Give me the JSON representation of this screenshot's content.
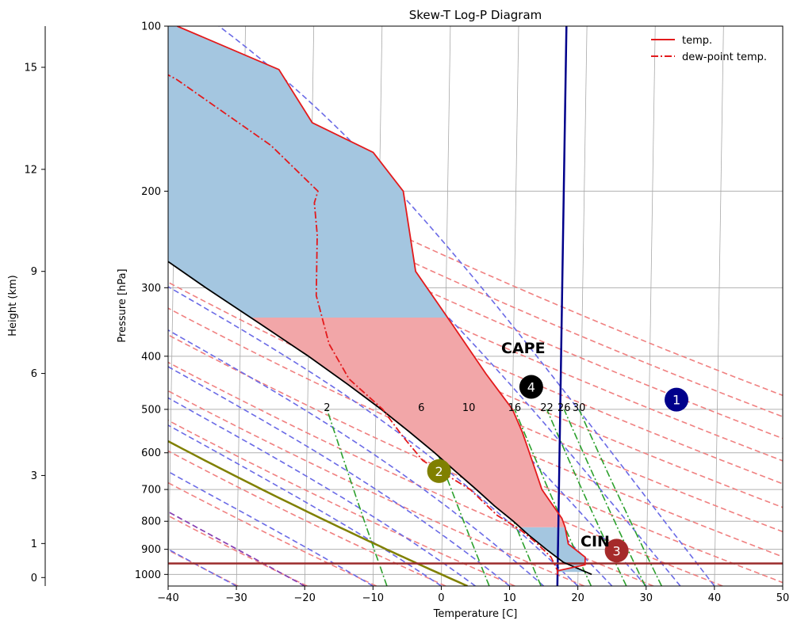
{
  "chart_data": {
    "type": "line",
    "title": "Skew-T Log-P Diagram",
    "xlabel": "Temperature [C]",
    "ylabel": "Pressure [hPa]",
    "height_label": "Height (km)",
    "xlim": [
      -40,
      50
    ],
    "ylim": [
      1050,
      100
    ],
    "x_ticks": [
      "−40",
      "−30",
      "−20",
      "−10",
      "0",
      "10",
      "20",
      "30",
      "40",
      "50"
    ],
    "p_ticks": [
      "100",
      "200",
      "300",
      "400",
      "500",
      "600",
      "700",
      "800",
      "900",
      "1000"
    ],
    "height_ticks": [
      "0",
      "1",
      "3",
      "6",
      "9",
      "12",
      "15"
    ],
    "legend": {
      "position": "top-right",
      "entries": [
        "temp.",
        "dew-point temp."
      ]
    },
    "series": [
      {
        "name": "temp.",
        "color": "#e31a1c",
        "style": "solid",
        "points": [
          [
            17,
            1000
          ],
          [
            17,
            985
          ],
          [
            21,
            960
          ],
          [
            21,
            930
          ],
          [
            18.5,
            880
          ],
          [
            18,
            820
          ],
          [
            17.5,
            790
          ],
          [
            14.5,
            700
          ],
          [
            13,
            620
          ],
          [
            11.5,
            550
          ],
          [
            10,
            500
          ],
          [
            6,
            430
          ],
          [
            1,
            350
          ],
          [
            -4.5,
            280
          ],
          [
            -6.5,
            200
          ],
          [
            -11,
            170
          ],
          [
            -20,
            150
          ],
          [
            -25,
            120
          ],
          [
            -40,
            100
          ]
        ]
      },
      {
        "name": "dew-point temp.",
        "color": "#e31a1c",
        "style": "dashdot",
        "points": [
          [
            17,
            1000
          ],
          [
            17,
            985
          ],
          [
            16,
            930
          ],
          [
            14,
            880
          ],
          [
            11.5,
            830
          ],
          [
            8,
            780
          ],
          [
            4,
            700
          ],
          [
            -3,
            620
          ],
          [
            -6,
            560
          ],
          [
            -9,
            500
          ],
          [
            -14,
            440
          ],
          [
            -17,
            380
          ],
          [
            -19,
            310
          ],
          [
            -19,
            240
          ],
          [
            -19.5,
            210
          ],
          [
            -19,
            200
          ],
          [
            -26,
            165
          ],
          [
            -40,
            125
          ],
          [
            -55,
            100
          ]
        ]
      }
    ],
    "parcel": {
      "color": "#000000",
      "points": [
        [
          22,
          1000
        ],
        [
          17.8,
          950
        ],
        [
          15.3,
          900
        ],
        [
          12.8,
          850
        ],
        [
          10.4,
          800
        ],
        [
          7.6,
          750
        ],
        [
          4.9,
          700
        ],
        [
          1.9,
          650
        ],
        [
          -1.3,
          600
        ],
        [
          -5,
          550
        ],
        [
          -9.2,
          500
        ],
        [
          -14.2,
          450
        ],
        [
          -20,
          400
        ],
        [
          -27,
          350
        ],
        [
          -35.2,
          300
        ],
        [
          -39.6,
          275
        ],
        [
          -44.5,
          250
        ],
        [
          -49.5,
          225
        ],
        [
          -55,
          200
        ],
        [
          -61,
          175
        ],
        [
          -68,
          150
        ],
        [
          -76,
          125
        ],
        [
          -86,
          100
        ]
      ]
    },
    "cape_label": "CAPE",
    "cin_label": "CIN",
    "dry_adiabat_olive": {
      "color": "#808000",
      "theta_K": 273.15
    },
    "lcl_line": {
      "color": "#9b2b2b",
      "pressure": 955
    },
    "skewed_line": {
      "color": "#00008b",
      "temp": 17,
      "pressure": 1000
    },
    "markers": [
      {
        "label": "1",
        "color": "#00008b",
        "t": 34,
        "p": 480
      },
      {
        "label": "2",
        "color": "#808000",
        "t": -0.6,
        "p": 648
      },
      {
        "label": "3",
        "color": "#a52a2a",
        "t": 25.6,
        "p": 905
      },
      {
        "label": "4",
        "color": "#000000",
        "t": 12.7,
        "p": 455
      }
    ],
    "mixing_ratio_labels": [
      "2",
      "6",
      "10",
      "16",
      "22",
      "26",
      "30"
    ],
    "mixing_ratios": [
      2,
      6,
      10,
      16,
      22,
      26,
      30
    ],
    "colors": {
      "dry_adiabats": "#f08080",
      "moist_adiabats": "#6a6ae6",
      "mixing_ratio": "#2ca02c",
      "isotherms": "#a9a9a9",
      "cape_fill": "#a4c6e0",
      "cape_fill_lower": "#f2a6a8"
    }
  }
}
